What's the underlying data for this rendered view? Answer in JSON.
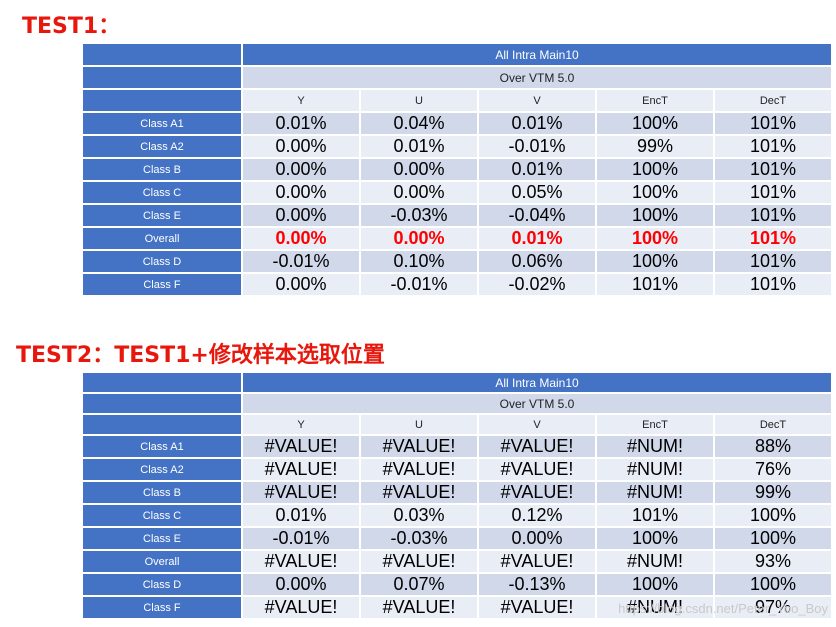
{
  "test1": {
    "heading": "TEST1：",
    "title": "All Intra Main10",
    "subtitle": "Over VTM 5.0",
    "columns": [
      "Y",
      "U",
      "V",
      "EncT",
      "DecT"
    ],
    "rows": [
      {
        "label": "Class A1",
        "values": [
          "0.01%",
          "0.04%",
          "0.01%",
          "100%",
          "101%"
        ]
      },
      {
        "label": "Class A2",
        "values": [
          "0.00%",
          "0.01%",
          "-0.01%",
          "99%",
          "101%"
        ]
      },
      {
        "label": "Class B",
        "values": [
          "0.00%",
          "0.00%",
          "0.01%",
          "100%",
          "101%"
        ]
      },
      {
        "label": "Class C",
        "values": [
          "0.00%",
          "0.00%",
          "0.05%",
          "100%",
          "101%"
        ]
      },
      {
        "label": "Class E",
        "values": [
          "0.00%",
          "-0.03%",
          "-0.04%",
          "100%",
          "101%"
        ]
      },
      {
        "label": "Overall",
        "values": [
          "0.00%",
          "0.00%",
          "0.01%",
          "100%",
          "101%"
        ],
        "highlight": true
      },
      {
        "label": "Class D",
        "values": [
          "-0.01%",
          "0.10%",
          "0.06%",
          "100%",
          "101%"
        ]
      },
      {
        "label": "Class F",
        "values": [
          "0.00%",
          "-0.01%",
          "-0.02%",
          "101%",
          "101%"
        ]
      }
    ]
  },
  "test2": {
    "heading": "TEST2：TEST1+修改样本选取位置",
    "title": "All Intra Main10",
    "subtitle": "Over VTM 5.0",
    "columns": [
      "Y",
      "U",
      "V",
      "EncT",
      "DecT"
    ],
    "rows": [
      {
        "label": "Class A1",
        "values": [
          "#VALUE!",
          "#VALUE!",
          "#VALUE!",
          "#NUM!",
          "88%"
        ]
      },
      {
        "label": "Class A2",
        "values": [
          "#VALUE!",
          "#VALUE!",
          "#VALUE!",
          "#NUM!",
          "76%"
        ]
      },
      {
        "label": "Class B",
        "values": [
          "#VALUE!",
          "#VALUE!",
          "#VALUE!",
          "#NUM!",
          "99%"
        ]
      },
      {
        "label": "Class C",
        "values": [
          "0.01%",
          "0.03%",
          "0.12%",
          "101%",
          "100%"
        ]
      },
      {
        "label": "Class E",
        "values": [
          "-0.01%",
          "-0.03%",
          "0.00%",
          "100%",
          "100%"
        ]
      },
      {
        "label": "Overall",
        "values": [
          "#VALUE!",
          "#VALUE!",
          "#VALUE!",
          "#NUM!",
          "93%"
        ]
      },
      {
        "label": "Class D",
        "values": [
          "0.00%",
          "0.07%",
          "-0.13%",
          "100%",
          "100%"
        ]
      },
      {
        "label": "Class F",
        "values": [
          "#VALUE!",
          "#VALUE!",
          "#VALUE!",
          "#NUM!",
          "97%"
        ]
      }
    ]
  },
  "watermark": "https://blog.csdn.net/Peter_Yoo_Boy",
  "colors": {
    "heading": "#e8170d",
    "header_blue": "#4472c4",
    "row_dark": "#d0d8ea",
    "row_light": "#e9edf6",
    "highlight": "#ff0000"
  }
}
